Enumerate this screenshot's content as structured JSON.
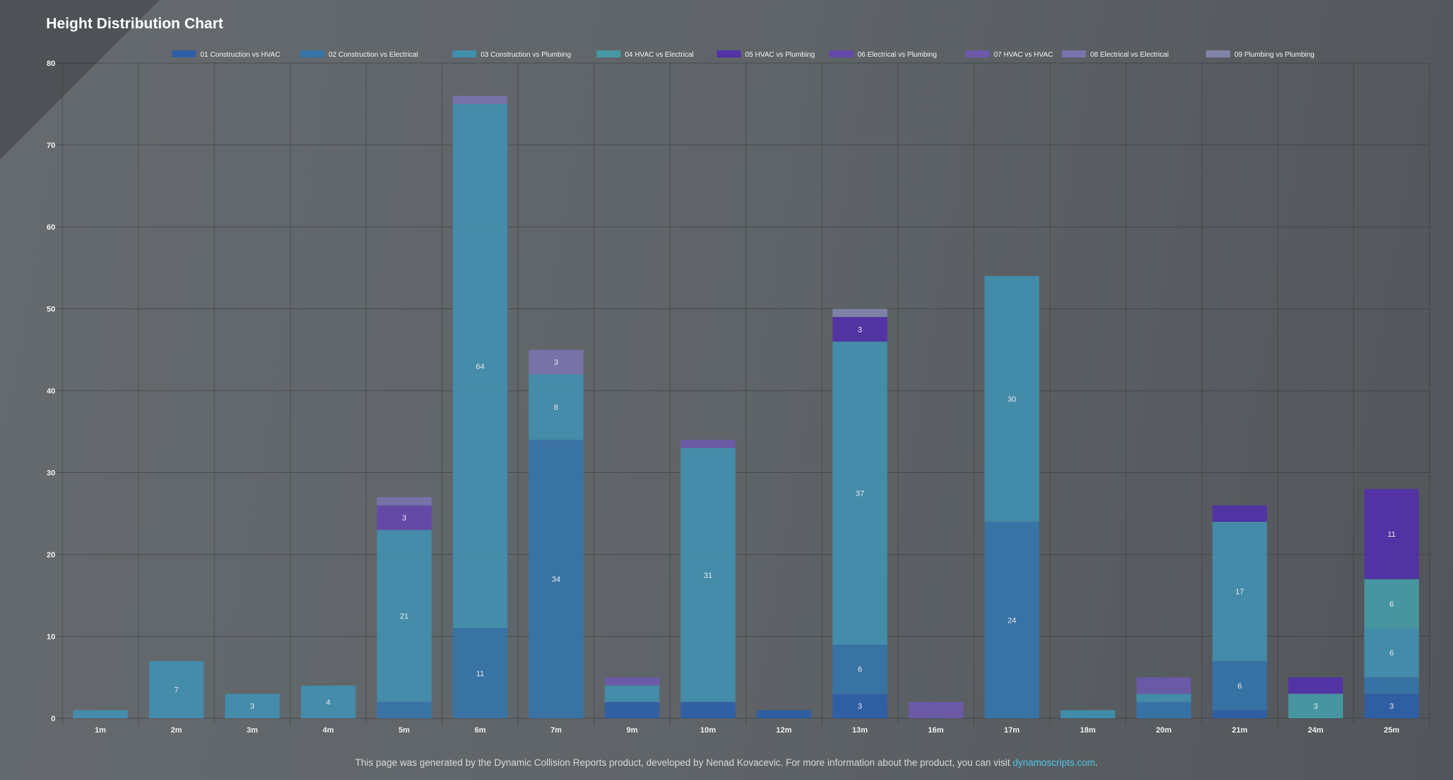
{
  "chart_data": {
    "type": "bar",
    "stacked": true,
    "title": "Height Distribution Chart",
    "xlabel": "",
    "ylabel": "",
    "ylim": [
      0,
      80
    ],
    "yticks": [
      0,
      10,
      20,
      30,
      40,
      50,
      60,
      70,
      80
    ],
    "grid": true,
    "legend_position": "top",
    "categories": [
      "1m",
      "2m",
      "3m",
      "4m",
      "5m",
      "6m",
      "7m",
      "9m",
      "10m",
      "12m",
      "13m",
      "16m",
      "17m",
      "18m",
      "20m",
      "21m",
      "24m",
      "25m"
    ],
    "series": [
      {
        "name": "01 Construction vs HVAC",
        "color": "#2e5fa6",
        "values": [
          0,
          0,
          0,
          0,
          0,
          0,
          0,
          2,
          2,
          1,
          3,
          0,
          0,
          0,
          0,
          1,
          0,
          3
        ]
      },
      {
        "name": "02 Construction vs Electrical",
        "color": "#3674a8",
        "values": [
          0,
          0,
          0,
          0,
          2,
          11,
          34,
          0,
          0,
          0,
          6,
          0,
          24,
          0,
          2,
          6,
          0,
          2
        ]
      },
      {
        "name": "03 Construction vs Plumbing",
        "color": "#428ead",
        "values": [
          1,
          7,
          3,
          4,
          21,
          64,
          8,
          2,
          31,
          0,
          37,
          0,
          30,
          1,
          1,
          17,
          0,
          6
        ]
      },
      {
        "name": "04 HVAC vs Electrical",
        "color": "#4799a3",
        "values": [
          0,
          0,
          0,
          0,
          0,
          0,
          0,
          0,
          0,
          0,
          0,
          0,
          0,
          0,
          0,
          0,
          3,
          6
        ]
      },
      {
        "name": "05 HVAC vs Plumbing",
        "color": "#5232a6",
        "values": [
          0,
          0,
          0,
          0,
          0,
          0,
          0,
          0,
          0,
          0,
          3,
          0,
          0,
          0,
          0,
          2,
          2,
          11
        ]
      },
      {
        "name": "06 Electrical vs Plumbing",
        "color": "#6548ab",
        "values": [
          0,
          0,
          0,
          0,
          3,
          0,
          0,
          0,
          0,
          0,
          0,
          0,
          0,
          0,
          0,
          0,
          0,
          0
        ]
      },
      {
        "name": "07 HVAC vs HVAC",
        "color": "#6c5aa9",
        "values": [
          0,
          0,
          0,
          0,
          0,
          0,
          0,
          1,
          1,
          0,
          0,
          2,
          0,
          0,
          2,
          0,
          0,
          0
        ]
      },
      {
        "name": "08 Electrical vs Electrical",
        "color": "#7873ab",
        "values": [
          0,
          0,
          0,
          0,
          1,
          1,
          3,
          0,
          0,
          0,
          0,
          0,
          0,
          0,
          0,
          0,
          0,
          0
        ]
      },
      {
        "name": "09 Plumbing vs Plumbing",
        "color": "#8084aa",
        "values": [
          0,
          0,
          0,
          0,
          0,
          0,
          0,
          0,
          0,
          0,
          1,
          0,
          0,
          0,
          0,
          0,
          0,
          0
        ]
      }
    ],
    "data_label_min": 3
  },
  "footer": {
    "text": "This page was generated by the Dynamic Collision Reports product, developed by Nenad Kovacevic. For more information about the product, you can visit ",
    "link": "dynamoscripts.com",
    "end": "."
  }
}
